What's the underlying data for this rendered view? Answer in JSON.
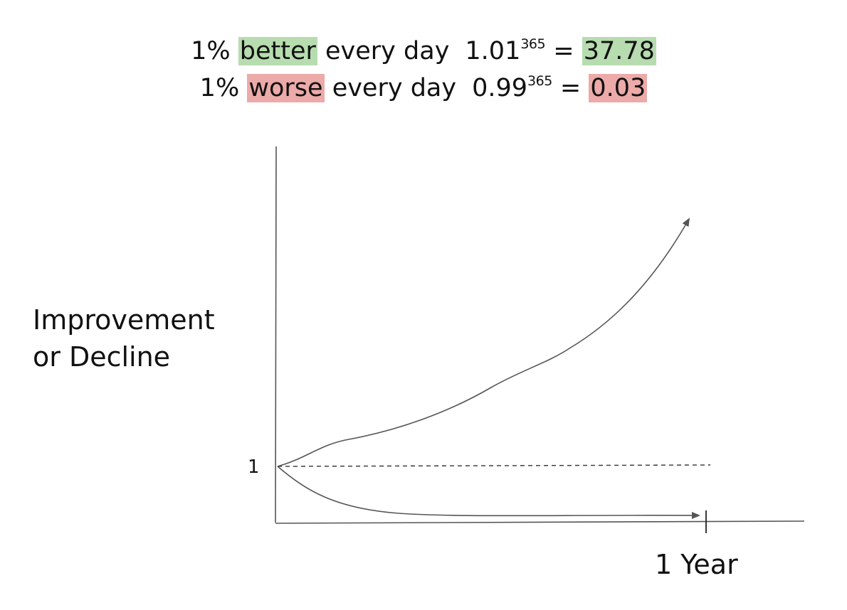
{
  "header": {
    "line1": {
      "prefix": "1%",
      "keyword": "better",
      "suffix": "every day",
      "base": "1.01",
      "exponent": "365",
      "equals": "=",
      "result": "37.78"
    },
    "line2": {
      "prefix": "1%",
      "keyword": "worse",
      "suffix": "every day",
      "base": "0.99",
      "exponent": "365",
      "equals": "=",
      "result": "0.03"
    }
  },
  "diagram": {
    "y_axis_label_line1": "Improvement",
    "y_axis_label_line2": "or Decline",
    "baseline_label": "1",
    "x_end_label": "1 Year"
  },
  "colors": {
    "better_highlight": "#b7dcaf",
    "worse_highlight": "#ecaaa8",
    "line_color": "#555555"
  }
}
